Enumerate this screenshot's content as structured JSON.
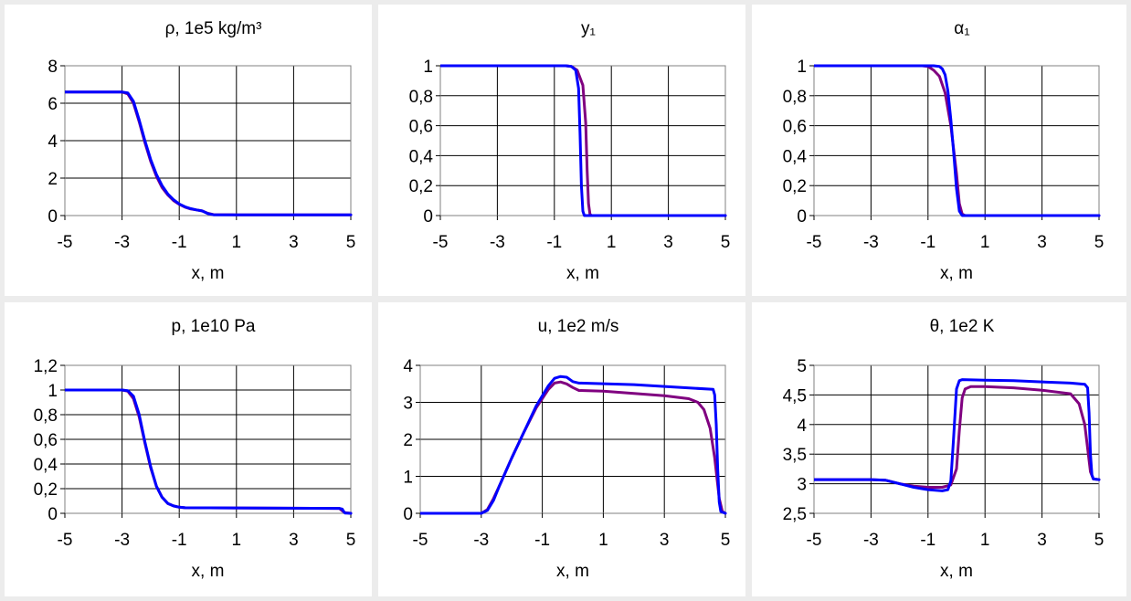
{
  "colors": {
    "background": "#ececec",
    "panel": "#ffffff",
    "grid": "#000000",
    "series_purple": "#800080",
    "series_blue": "#0000ff"
  },
  "chart_data": [
    {
      "type": "line",
      "title": "ρ,  1e5 kg/m³",
      "xlabel": "x, m",
      "ylabel": "",
      "xlim": [
        -5,
        5
      ],
      "ylim": [
        0,
        8
      ],
      "xticks": [
        "-5",
        "-3",
        "-1",
        "1",
        "3",
        "5"
      ],
      "yticks": [
        "0",
        "2",
        "4",
        "6",
        "8"
      ],
      "grid": true,
      "series": [
        {
          "color": "#800080",
          "x": [
            -5,
            -3,
            -2.8,
            -2.6,
            -2.4,
            -2.2,
            -2.0,
            -1.8,
            -1.6,
            -1.4,
            -1.2,
            -1.0,
            -0.8,
            -0.6,
            -0.4,
            -0.2,
            0.0,
            0.2,
            1,
            5
          ],
          "y": [
            6.6,
            6.6,
            6.5,
            6.0,
            5.0,
            3.9,
            2.9,
            2.1,
            1.5,
            1.1,
            0.8,
            0.6,
            0.45,
            0.35,
            0.3,
            0.25,
            0.12,
            0.05,
            0.04,
            0.04
          ]
        },
        {
          "color": "#0000ff",
          "x": [
            -5,
            -3,
            -2.8,
            -2.6,
            -2.4,
            -2.2,
            -2.0,
            -1.8,
            -1.6,
            -1.4,
            -1.2,
            -1.0,
            -0.8,
            -0.6,
            -0.4,
            -0.2,
            0.0,
            0.2,
            1,
            5
          ],
          "y": [
            6.6,
            6.6,
            6.55,
            6.1,
            5.1,
            4.0,
            3.0,
            2.2,
            1.6,
            1.15,
            0.85,
            0.62,
            0.47,
            0.37,
            0.3,
            0.25,
            0.1,
            0.04,
            0.04,
            0.04
          ]
        }
      ]
    },
    {
      "type": "line",
      "title": "y₁",
      "xlabel": "x, m",
      "ylabel": "",
      "xlim": [
        -5,
        5
      ],
      "ylim": [
        0,
        1
      ],
      "xticks": [
        "-5",
        "-3",
        "-1",
        "1",
        "3",
        "5"
      ],
      "yticks": [
        "0",
        "0,2",
        "0,4",
        "0,6",
        "0,8",
        "1"
      ],
      "grid": true,
      "series": [
        {
          "color": "#800080",
          "x": [
            -5,
            -0.6,
            -0.4,
            -0.2,
            0.0,
            0.1,
            0.15,
            0.2,
            0.25,
            0.3,
            0.4,
            5
          ],
          "y": [
            1,
            1,
            0.995,
            0.97,
            0.87,
            0.62,
            0.3,
            0.08,
            0.01,
            0,
            0,
            0
          ]
        },
        {
          "color": "#0000ff",
          "x": [
            -5,
            -0.6,
            -0.4,
            -0.25,
            -0.15,
            -0.1,
            -0.05,
            0.0,
            0.05,
            0.1,
            5
          ],
          "y": [
            1,
            1,
            0.995,
            0.97,
            0.85,
            0.55,
            0.2,
            0.03,
            0,
            0,
            0
          ]
        }
      ]
    },
    {
      "type": "line",
      "title": "α₁",
      "xlabel": "x, m",
      "ylabel": "",
      "xlim": [
        -5,
        5
      ],
      "ylim": [
        0,
        1
      ],
      "xticks": [
        "-5",
        "-3",
        "-1",
        "1",
        "3",
        "5"
      ],
      "yticks": [
        "0",
        "0,2",
        "0,4",
        "0,6",
        "0,8",
        "1"
      ],
      "grid": true,
      "series": [
        {
          "color": "#800080",
          "x": [
            -5,
            -1.2,
            -1.0,
            -0.8,
            -0.6,
            -0.4,
            -0.2,
            0.0,
            0.1,
            0.2,
            0.3,
            5
          ],
          "y": [
            1,
            1,
            0.995,
            0.97,
            0.93,
            0.82,
            0.6,
            0.28,
            0.08,
            0.01,
            0,
            0
          ]
        },
        {
          "color": "#0000ff",
          "x": [
            -5,
            -0.8,
            -0.6,
            -0.5,
            -0.4,
            -0.3,
            -0.2,
            -0.1,
            0.0,
            0.1,
            0.2,
            5
          ],
          "y": [
            1,
            1,
            0.995,
            0.98,
            0.94,
            0.83,
            0.64,
            0.42,
            0.18,
            0.03,
            0,
            0
          ]
        }
      ]
    },
    {
      "type": "line",
      "title": "p,  1e10 Pa",
      "xlabel": "x, m",
      "ylabel": "",
      "xlim": [
        -5,
        5
      ],
      "ylim": [
        0,
        1.2
      ],
      "xticks": [
        "-5",
        "-3",
        "-1",
        "1",
        "3",
        "5"
      ],
      "yticks": [
        "0",
        "0,2",
        "0,4",
        "0,6",
        "0,8",
        "1",
        "1,2"
      ],
      "grid": true,
      "series": [
        {
          "color": "#800080",
          "x": [
            -5,
            -3,
            -2.8,
            -2.6,
            -2.4,
            -2.2,
            -2.0,
            -1.8,
            -1.6,
            -1.4,
            -1.2,
            -1.0,
            -0.8,
            4.6,
            4.7,
            4.8,
            5
          ],
          "y": [
            1,
            1,
            0.99,
            0.93,
            0.78,
            0.57,
            0.37,
            0.22,
            0.13,
            0.08,
            0.06,
            0.05,
            0.045,
            0.04,
            0.02,
            0.005,
            0
          ]
        },
        {
          "color": "#0000ff",
          "x": [
            -5,
            -3,
            -2.8,
            -2.6,
            -2.4,
            -2.2,
            -2.0,
            -1.8,
            -1.6,
            -1.4,
            -1.2,
            -1.0,
            -0.8,
            4.6,
            4.7,
            4.75,
            4.8,
            5
          ],
          "y": [
            1,
            1,
            0.995,
            0.95,
            0.8,
            0.58,
            0.38,
            0.22,
            0.13,
            0.08,
            0.06,
            0.05,
            0.045,
            0.04,
            0.035,
            0.015,
            0.002,
            0
          ]
        }
      ]
    },
    {
      "type": "line",
      "title": "u,  1e2 m/s",
      "xlabel": "x, m",
      "ylabel": "",
      "xlim": [
        -5,
        5
      ],
      "ylim": [
        0,
        4
      ],
      "xticks": [
        "-5",
        "-3",
        "-1",
        "1",
        "3",
        "5"
      ],
      "yticks": [
        "0",
        "1",
        "2",
        "3",
        "4"
      ],
      "grid": true,
      "series": [
        {
          "color": "#800080",
          "x": [
            -5,
            -3,
            -2.8,
            -2.6,
            -2.4,
            -2.0,
            -1.6,
            -1.2,
            -0.8,
            -0.6,
            -0.4,
            -0.2,
            0.0,
            0.2,
            1.0,
            2.0,
            3.0,
            3.8,
            4.1,
            4.3,
            4.5,
            4.65,
            4.8,
            4.9,
            5
          ],
          "y": [
            0,
            0,
            0.1,
            0.4,
            0.75,
            1.5,
            2.2,
            2.85,
            3.35,
            3.52,
            3.55,
            3.5,
            3.4,
            3.32,
            3.3,
            3.24,
            3.18,
            3.1,
            3.0,
            2.8,
            2.3,
            1.5,
            0.4,
            0.05,
            0
          ]
        },
        {
          "color": "#0000ff",
          "x": [
            -5,
            -3,
            -2.8,
            -2.6,
            -2.4,
            -2.0,
            -1.6,
            -1.2,
            -0.8,
            -0.6,
            -0.4,
            -0.2,
            0.0,
            0.2,
            2.0,
            4.6,
            4.65,
            4.7,
            4.75,
            4.8,
            4.85,
            5
          ],
          "y": [
            0,
            0,
            0.08,
            0.35,
            0.75,
            1.5,
            2.2,
            2.9,
            3.45,
            3.65,
            3.7,
            3.68,
            3.56,
            3.52,
            3.48,
            3.35,
            3.2,
            2.4,
            1.2,
            0.3,
            0.05,
            0
          ]
        }
      ]
    },
    {
      "type": "line",
      "title": "θ,  1e2 K",
      "xlabel": "x, m",
      "ylabel": "",
      "xlim": [
        -5,
        5
      ],
      "ylim": [
        2.5,
        5
      ],
      "xticks": [
        "-5",
        "-3",
        "-1",
        "1",
        "3",
        "5"
      ],
      "yticks": [
        "2,5",
        "3",
        "3,5",
        "4",
        "4,5",
        "5"
      ],
      "grid": true,
      "series": [
        {
          "color": "#800080",
          "x": [
            -5,
            -3,
            -2.5,
            -2.0,
            -1.5,
            -1.0,
            -0.5,
            -0.2,
            0.0,
            0.1,
            0.2,
            0.3,
            0.5,
            1.0,
            2.0,
            3.0,
            4.0,
            4.3,
            4.5,
            4.6,
            4.7,
            4.8,
            5
          ],
          "y": [
            3.07,
            3.07,
            3.06,
            3.0,
            2.96,
            2.94,
            2.94,
            2.98,
            3.25,
            3.9,
            4.45,
            4.6,
            4.64,
            4.64,
            4.62,
            4.58,
            4.52,
            4.35,
            4.0,
            3.6,
            3.2,
            3.08,
            3.07
          ]
        },
        {
          "color": "#0000ff",
          "x": [
            -5,
            -3,
            -2.5,
            -2.0,
            -1.5,
            -1.0,
            -0.5,
            -0.3,
            -0.2,
            -0.1,
            0.0,
            0.1,
            0.2,
            1.0,
            2.0,
            3.0,
            4.0,
            4.5,
            4.6,
            4.65,
            4.7,
            4.75,
            4.8,
            5
          ],
          "y": [
            3.07,
            3.07,
            3.06,
            3.0,
            2.94,
            2.9,
            2.88,
            2.9,
            3.05,
            3.8,
            4.6,
            4.74,
            4.76,
            4.75,
            4.74,
            4.72,
            4.7,
            4.68,
            4.62,
            4.2,
            3.5,
            3.15,
            3.08,
            3.07
          ]
        }
      ]
    }
  ]
}
